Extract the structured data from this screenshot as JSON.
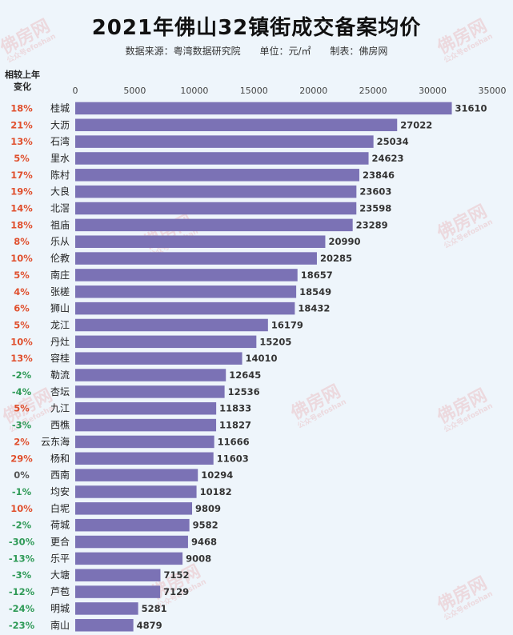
{
  "header": {
    "title": "2021年佛山32镇街成交备案均价",
    "source": "数据来源：粤湾数据研究院",
    "unit": "单位：元/㎡",
    "maker": "制表：佛房网",
    "change_label": "相较上年变化"
  },
  "watermark": {
    "text": "佛房网",
    "sub": "公众号efoshan"
  },
  "colors": {
    "bar": "#7b72b5",
    "positive": "#e0502e",
    "negative": "#2f9a57",
    "neutral": "#555555"
  },
  "chart_data": {
    "type": "bar",
    "orientation": "horizontal",
    "title": "2021年佛山32镇街成交备案均价",
    "xlim": [
      0,
      35000
    ],
    "xticks": [
      0,
      5000,
      10000,
      15000,
      20000,
      25000,
      30000,
      35000
    ],
    "categories": [
      "桂城",
      "大沥",
      "石湾",
      "里水",
      "陈村",
      "大良",
      "北滘",
      "祖庙",
      "乐从",
      "伦教",
      "南庄",
      "张槎",
      "狮山",
      "龙江",
      "丹灶",
      "容桂",
      "勒流",
      "杏坛",
      "九江",
      "西樵",
      "云东海",
      "杨和",
      "西南",
      "均安",
      "白坭",
      "荷城",
      "更合",
      "乐平",
      "大塘",
      "芦苞",
      "明城",
      "南山"
    ],
    "values": [
      31610,
      27022,
      25034,
      24623,
      23846,
      23603,
      23598,
      23289,
      20990,
      20285,
      18657,
      18549,
      18432,
      16179,
      15205,
      14010,
      12645,
      12536,
      11833,
      11827,
      11666,
      11603,
      10294,
      10182,
      9809,
      9582,
      9468,
      9008,
      7152,
      7129,
      5281,
      4879
    ],
    "changes": [
      "18%",
      "21%",
      "13%",
      "5%",
      "17%",
      "19%",
      "14%",
      "18%",
      "8%",
      "10%",
      "5%",
      "4%",
      "6%",
      "5%",
      "10%",
      "13%",
      "-2%",
      "-4%",
      "5%",
      "-3%",
      "2%",
      "29%",
      "0%",
      "-1%",
      "10%",
      "-2%",
      "-30%",
      "-13%",
      "-3%",
      "-12%",
      "-24%",
      "-23%"
    ]
  }
}
